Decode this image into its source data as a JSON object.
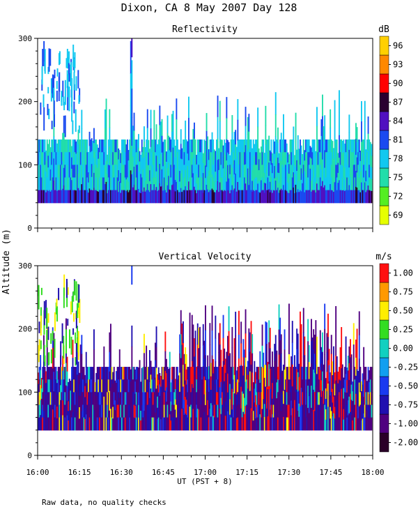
{
  "chart_data": {
    "title": "Dixon, CA  8 May 2007  Day 128",
    "ylabel": "Altitude (m)",
    "xlabel": "UT  (PST + 8)",
    "footnote": "Raw data, no quality checks",
    "x_ticks": [
      "16:00",
      "16:15",
      "16:30",
      "16:45",
      "17:00",
      "17:15",
      "17:30",
      "17:45",
      "18:00"
    ],
    "x_range_minutes": [
      0,
      120
    ],
    "panels": [
      {
        "type": "heatmap",
        "title": "Reflectivity",
        "units": "dB",
        "ylim": [
          0,
          300
        ],
        "y_ticks": [
          "0",
          "100",
          "200",
          "300"
        ],
        "colorbar": {
          "labels": [
            "69",
            "72",
            "75",
            "78",
            "81",
            "84",
            "87",
            "90",
            "93",
            "96"
          ],
          "colors": [
            "#e6ff00",
            "#55ee22",
            "#22ddaa",
            "#11c8f0",
            "#1a4af0",
            "#5010c0",
            "#2a0030",
            "#ff0000",
            "#ff8800",
            "#ffd000"
          ]
        },
        "data_regions": [
          {
            "desc": "dense echo layer",
            "x_minutes": [
              0,
              120
            ],
            "altitude_m": [
              40,
              140
            ]
          },
          {
            "desc": "upper echoes",
            "x_minutes": [
              0,
              15
            ],
            "altitude_m": [
              140,
              280
            ]
          },
          {
            "desc": "isolated plume",
            "x_minutes": [
              33,
              34
            ],
            "altitude_m": [
              260,
              300
            ]
          }
        ]
      },
      {
        "type": "heatmap",
        "title": "Vertical Velocity",
        "units": "m/s",
        "ylim": [
          0,
          300
        ],
        "y_ticks": [
          "0",
          "100",
          "200",
          "300"
        ],
        "colorbar": {
          "labels": [
            "-2.00",
            "-1.00",
            "-0.75",
            "-0.50",
            "-0.25",
            "0.00",
            "0.25",
            "0.50",
            "0.75",
            "1.00"
          ],
          "colors": [
            "#2a0028",
            "#500080",
            "#2010b0",
            "#1a3af0",
            "#119ff0",
            "#11d0c0",
            "#33dd22",
            "#ffee00",
            "#ff9900",
            "#ff1010"
          ]
        },
        "data_regions": [
          {
            "desc": "dense velocity layer",
            "x_minutes": [
              0,
              120
            ],
            "altitude_m": [
              40,
              140
            ]
          },
          {
            "desc": "upper echoes",
            "x_minutes": [
              0,
              15
            ],
            "altitude_m": [
              140,
              280
            ]
          },
          {
            "desc": "updraft plumes",
            "x_minutes": [
              50,
              115
            ],
            "altitude_m": [
              140,
              240
            ]
          }
        ]
      }
    ]
  }
}
